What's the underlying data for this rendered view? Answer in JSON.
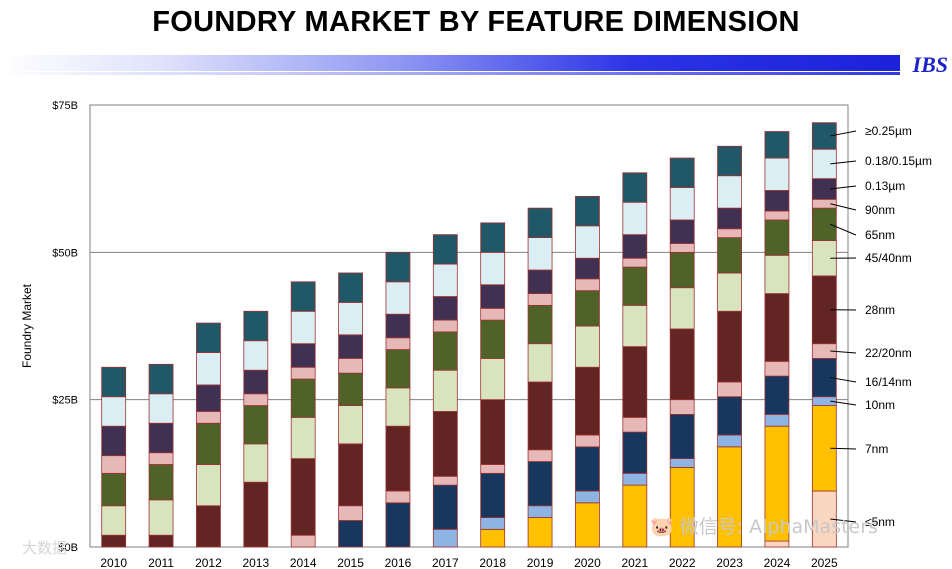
{
  "header": {
    "title": "FOUNDRY MARKET BY FEATURE DIMENSION",
    "logo": "IBS"
  },
  "watermark": {
    "main": "🐷 微信号: AlphaMasters",
    "corner": "大数据"
  },
  "chart_data": {
    "type": "bar",
    "stacked": true,
    "ylabel": "Foundry Market",
    "ylim": [
      0,
      75
    ],
    "yticks": [
      "$0B",
      "$25B",
      "$50B",
      "$75B"
    ],
    "ytick_values": [
      0,
      25,
      50,
      75
    ],
    "grid": "horizontal",
    "legend_placement": "right (labels with leader lines)",
    "categories": [
      "2010",
      "2011",
      "2012",
      "2013",
      "2014",
      "2015",
      "2016",
      "2017",
      "2018",
      "2019",
      "2020",
      "2021",
      "2022",
      "2023",
      "2024",
      "2025"
    ],
    "series": [
      {
        "name": "≤5nm",
        "color": "#fbd7c0",
        "values": [
          0,
          0,
          0,
          0,
          0,
          0,
          0,
          0,
          0,
          0,
          0,
          0,
          0,
          0,
          1.0,
          9.5
        ]
      },
      {
        "name": "7nm",
        "color": "#ffc000",
        "values": [
          0,
          0,
          0,
          0,
          0,
          0,
          0,
          0,
          3.0,
          5.0,
          7.5,
          10.5,
          13.5,
          17.0,
          19.5,
          14.5
        ]
      },
      {
        "name": "10nm",
        "color": "#8eb4e3",
        "values": [
          0,
          0,
          0,
          0,
          0,
          0,
          0,
          3.0,
          2.0,
          2.0,
          2.0,
          2.0,
          1.5,
          2.0,
          2.0,
          1.5
        ]
      },
      {
        "name": "16/14nm",
        "color": "#17375e",
        "values": [
          0,
          0,
          0,
          0,
          0,
          4.5,
          7.5,
          7.5,
          7.5,
          7.5,
          7.5,
          7.0,
          7.5,
          6.5,
          6.5,
          6.5
        ]
      },
      {
        "name": "22/20nm",
        "color": "#e6b9b8",
        "values": [
          0,
          0,
          0,
          0,
          2.0,
          2.5,
          2.0,
          1.5,
          1.5,
          2.0,
          2.0,
          2.5,
          2.5,
          2.5,
          2.5,
          2.5
        ]
      },
      {
        "name": "28nm",
        "color": "#632523",
        "values": [
          2.0,
          2.0,
          7.0,
          11.0,
          13.0,
          10.5,
          11.0,
          11.0,
          11.0,
          11.5,
          11.5,
          12.0,
          12.0,
          12.0,
          11.5,
          11.5
        ]
      },
      {
        "name": "45/40nm",
        "color": "#d7e4bd",
        "values": [
          5.0,
          6.0,
          7.0,
          6.5,
          7.0,
          6.5,
          6.5,
          7.0,
          7.0,
          6.5,
          7.0,
          7.0,
          7.0,
          6.5,
          6.5,
          6.0
        ]
      },
      {
        "name": "65nm",
        "color": "#4f6228",
        "values": [
          5.5,
          6.0,
          7.0,
          6.5,
          6.5,
          5.5,
          6.5,
          6.5,
          6.5,
          6.5,
          6.0,
          6.5,
          6.0,
          6.0,
          6.0,
          5.5
        ]
      },
      {
        "name": "90nm",
        "color": "#e6b9b8",
        "values": [
          3.0,
          2.0,
          2.0,
          2.0,
          2.0,
          2.5,
          2.0,
          2.0,
          2.0,
          2.0,
          2.0,
          1.5,
          1.5,
          1.5,
          1.5,
          1.5
        ]
      },
      {
        "name": "0.13µm",
        "color": "#403152",
        "values": [
          5.0,
          5.0,
          4.5,
          4.0,
          4.0,
          4.0,
          4.0,
          4.0,
          4.0,
          4.0,
          3.5,
          4.0,
          4.0,
          3.5,
          3.5,
          3.5
        ]
      },
      {
        "name": "0.18/0.15µm",
        "color": "#dbeef4",
        "values": [
          5.0,
          5.0,
          5.5,
          5.0,
          5.5,
          5.5,
          5.5,
          5.5,
          5.5,
          5.5,
          5.5,
          5.5,
          5.5,
          5.5,
          5.5,
          5.0
        ]
      },
      {
        "name": "≥0.25µm",
        "color": "#215868",
        "values": [
          5.0,
          5.0,
          5.0,
          5.0,
          5.0,
          5.0,
          5.0,
          5.0,
          5.0,
          5.0,
          5.0,
          5.0,
          5.0,
          5.0,
          4.5,
          4.5
        ]
      }
    ]
  }
}
